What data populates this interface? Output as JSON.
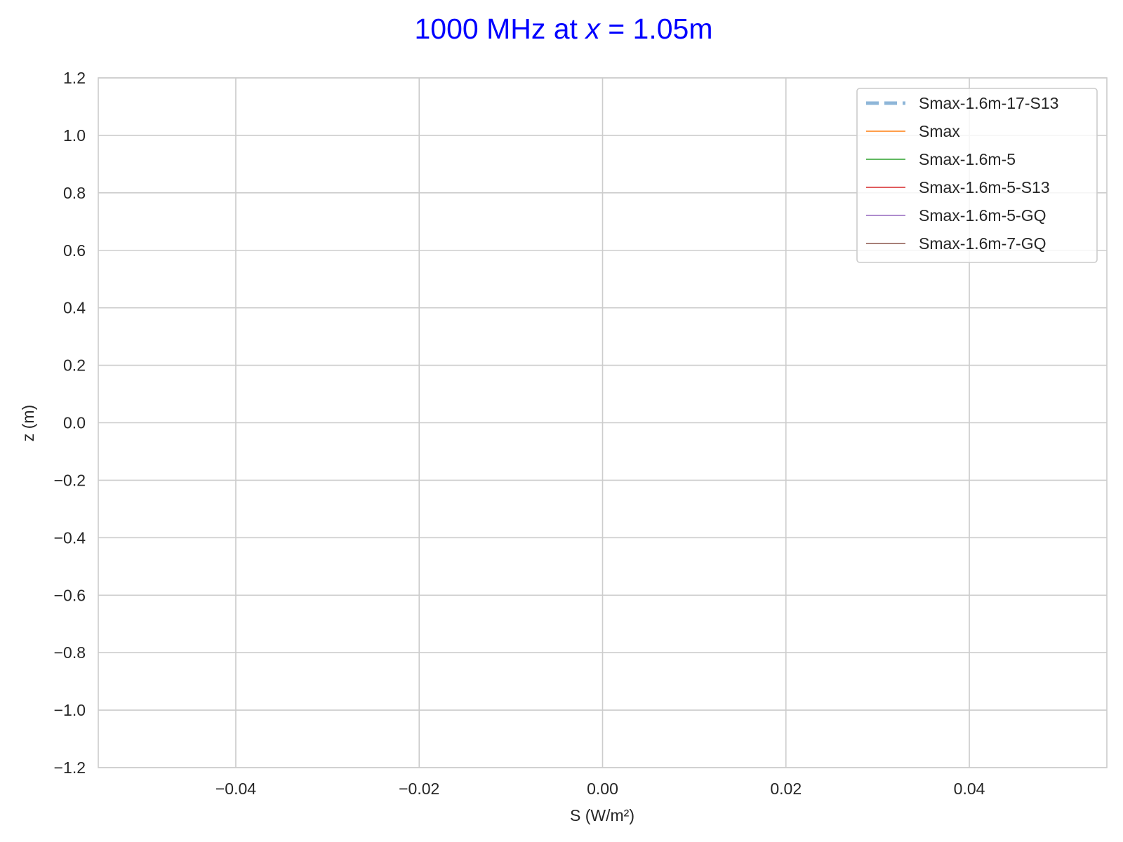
{
  "chart_data": {
    "type": "line",
    "title": {
      "prefix": "1000 MHz at ",
      "variable": "x",
      "suffix": " = 1.05m",
      "color": "#0000ff"
    },
    "xlabel": "S (W/m²)",
    "ylabel": "z (m)",
    "xlim": [
      -0.055,
      0.055
    ],
    "ylim": [
      -1.2,
      1.2
    ],
    "xticks": [
      {
        "value": -0.04,
        "label": "−0.04"
      },
      {
        "value": -0.02,
        "label": "−0.02"
      },
      {
        "value": 0.0,
        "label": "0.00"
      },
      {
        "value": 0.02,
        "label": "0.02"
      },
      {
        "value": 0.04,
        "label": "0.04"
      }
    ],
    "yticks": [
      {
        "value": 1.2,
        "label": "1.2"
      },
      {
        "value": 1.0,
        "label": "1.0"
      },
      {
        "value": 0.8,
        "label": "0.8"
      },
      {
        "value": 0.6,
        "label": "0.6"
      },
      {
        "value": 0.4,
        "label": "0.4"
      },
      {
        "value": 0.2,
        "label": "0.2"
      },
      {
        "value": 0.0,
        "label": "0.0"
      },
      {
        "value": -0.2,
        "label": "−0.2"
      },
      {
        "value": -0.4,
        "label": "−0.4"
      },
      {
        "value": -0.6,
        "label": "−0.6"
      },
      {
        "value": -0.8,
        "label": "−0.8"
      },
      {
        "value": -1.0,
        "label": "−1.0"
      },
      {
        "value": -1.2,
        "label": "−1.2"
      }
    ],
    "grid": true,
    "legend_position": "top-right",
    "series": [
      {
        "name": "Smax-1.6m-17-S13",
        "color": "#8eb6d8",
        "style": "dashed",
        "values": []
      },
      {
        "name": "Smax",
        "color": "#ff7f0e",
        "style": "solid",
        "values": []
      },
      {
        "name": "Smax-1.6m-5",
        "color": "#2ca02c",
        "style": "solid",
        "values": []
      },
      {
        "name": "Smax-1.6m-5-S13",
        "color": "#d62728",
        "style": "solid",
        "values": []
      },
      {
        "name": "Smax-1.6m-5-GQ",
        "color": "#9467bd",
        "style": "solid",
        "values": []
      },
      {
        "name": "Smax-1.6m-7-GQ",
        "color": "#8c564b",
        "style": "solid",
        "values": []
      }
    ]
  }
}
